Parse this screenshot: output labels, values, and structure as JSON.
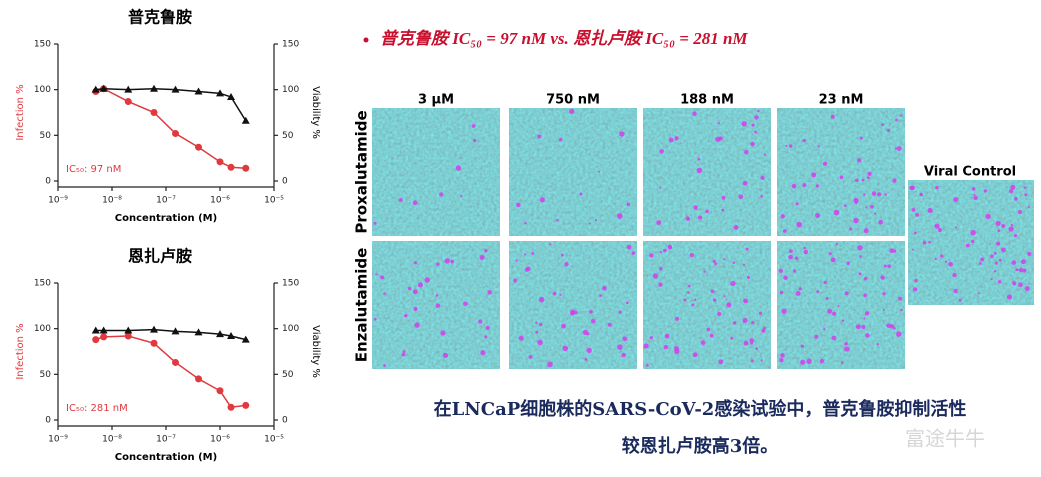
{
  "chart_data": [
    {
      "type": "line",
      "title": "普克鲁胺",
      "x_label": "Concentration (M)",
      "y_label": "Infection %",
      "y2_label": "Viability %",
      "annotation": "IC₅₀: 97 nM",
      "annotation_color": "#e0393e",
      "xscale": "log",
      "xlim": [
        1e-09,
        1e-05
      ],
      "xticks": [
        {
          "value": 1e-09,
          "label": "10⁻⁹"
        },
        {
          "value": 1e-08,
          "label": "10⁻⁸"
        },
        {
          "value": 1e-07,
          "label": "10⁻⁷"
        },
        {
          "value": 1e-06,
          "label": "10⁻⁶"
        },
        {
          "value": 1e-05,
          "label": "10⁻⁵"
        }
      ],
      "ylim": [
        0,
        150
      ],
      "yticks": [
        0,
        50,
        100,
        150
      ],
      "y2lim": [
        0,
        150
      ],
      "y2ticks": [
        0,
        50,
        100,
        150
      ],
      "x": [
        5e-09,
        7e-09,
        2e-08,
        6e-08,
        1.5e-07,
        4e-07,
        1e-06,
        1.6e-06,
        3e-06
      ],
      "series": [
        {
          "color": "#e0393e",
          "marker": "circle",
          "values": [
            98,
            101,
            87,
            75,
            52,
            37,
            21,
            15,
            14
          ]
        },
        {
          "color": "#111111",
          "marker": "triangle",
          "axis": "y2",
          "values": [
            100,
            101,
            100,
            101,
            100,
            98,
            96,
            92,
            66
          ]
        }
      ]
    },
    {
      "type": "line",
      "title": "恩扎卢胺",
      "x_label": "Concentration (M)",
      "y_label": "Infection %",
      "y2_label": "Viability %",
      "annotation": "IC₅₀: 281 nM",
      "annotation_color": "#e0393e",
      "xscale": "log",
      "xlim": [
        1e-09,
        1e-05
      ],
      "xticks": [
        {
          "value": 1e-09,
          "label": "10⁻⁹"
        },
        {
          "value": 1e-08,
          "label": "10⁻⁸"
        },
        {
          "value": 1e-07,
          "label": "10⁻⁷"
        },
        {
          "value": 1e-06,
          "label": "10⁻⁶"
        },
        {
          "value": 1e-05,
          "label": "10⁻⁵"
        }
      ],
      "ylim": [
        0,
        150
      ],
      "yticks": [
        0,
        50,
        100,
        150
      ],
      "y2lim": [
        0,
        150
      ],
      "y2ticks": [
        0,
        50,
        100,
        150
      ],
      "x": [
        5e-09,
        7e-09,
        2e-08,
        6e-08,
        1.5e-07,
        4e-07,
        1e-06,
        1.6e-06,
        3e-06
      ],
      "series": [
        {
          "color": "#e0393e",
          "marker": "circle",
          "values": [
            88,
            91,
            92,
            84,
            63,
            45,
            32,
            14,
            16
          ]
        },
        {
          "color": "#111111",
          "marker": "triangle",
          "axis": "y2",
          "values": [
            98,
            98,
            98,
            99,
            97,
            96,
            94,
            92,
            88
          ]
        }
      ]
    }
  ],
  "headline": "普克鲁胺 IC₅₀ = 97 nM vs. 恩扎卢胺 IC₅₀ = 281 nM",
  "image_panel": {
    "columns": [
      "3 μM",
      "750 nM",
      "188 nM",
      "23 nM"
    ],
    "rows": [
      "Proxalutamide",
      "Enzalutamide"
    ],
    "control": "Viral Control"
  },
  "caption": [
    "在LNCaP细胞株的SARS-CoV-2感染试验中，普克鲁胺抑制活性",
    "较恩扎卢胺高3倍。"
  ],
  "watermark": "富途牛牛"
}
